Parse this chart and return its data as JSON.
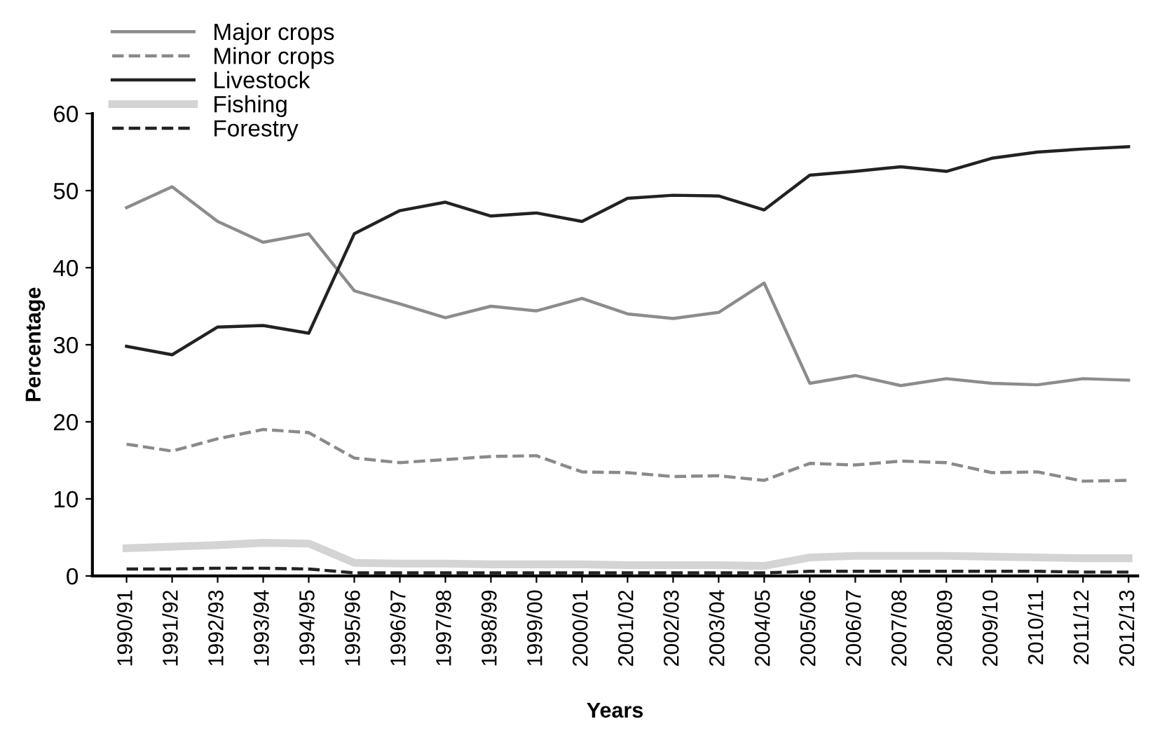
{
  "chart_data": {
    "type": "line",
    "xlabel": "Years",
    "ylabel": "Percentage",
    "categories": [
      "1990/91",
      "1991/92",
      "1992/93",
      "1993/94",
      "1994/95",
      "1995/96",
      "1996/97",
      "1997/98",
      "1998/99",
      "1999/00",
      "2000/01",
      "2001/02",
      "2002/03",
      "2003/04",
      "2004/05",
      "2005/06",
      "2006/07",
      "2007/08",
      "2008/09",
      "2009/10",
      "2010/11",
      "2011/12",
      "2012/13"
    ],
    "series": [
      {
        "name": "Major crops",
        "color": "#8c8c8c",
        "line_style": "solid",
        "values": [
          47.8,
          50.5,
          46,
          43.3,
          44.4,
          37,
          35.3,
          33.5,
          35,
          34.4,
          36,
          34,
          33.4,
          34.2,
          38,
          25,
          26,
          24.7,
          25.6,
          25,
          24.8,
          25.6,
          25.4
        ]
      },
      {
        "name": "Minor crops",
        "color": "#8a8a8a",
        "line_style": "dashed",
        "values": [
          17.1,
          16.2,
          17.8,
          19,
          18.6,
          15.3,
          14.7,
          15.1,
          15.5,
          15.6,
          13.5,
          13.4,
          12.9,
          13,
          12.4,
          14.6,
          14.4,
          14.9,
          14.7,
          13.4,
          13.5,
          12.3,
          12.4
        ]
      },
      {
        "name": "Livestock",
        "color": "#222222",
        "line_style": "solid",
        "values": [
          29.8,
          28.7,
          32.3,
          32.5,
          31.5,
          44.4,
          47.4,
          48.5,
          46.7,
          47.1,
          46,
          49,
          49.4,
          49.3,
          47.5,
          52,
          52.5,
          53.1,
          52.5,
          54.2,
          55,
          55.4,
          55.7
        ]
      },
      {
        "name": "Fishing",
        "color": "#d4d4d4",
        "line_style": "solid",
        "values": [
          3.6,
          3.8,
          4,
          4.3,
          4.2,
          1.7,
          1.6,
          1.6,
          1.5,
          1.5,
          1.5,
          1.4,
          1.4,
          1.4,
          1.3,
          2.4,
          2.6,
          2.6,
          2.6,
          2.5,
          2.4,
          2.3,
          2.3
        ]
      },
      {
        "name": "Forestry",
        "color": "#222222",
        "line_style": "dashed",
        "values": [
          0.9,
          0.9,
          1,
          1,
          0.9,
          0.4,
          0.4,
          0.4,
          0.4,
          0.4,
          0.4,
          0.4,
          0.4,
          0.4,
          0.4,
          0.6,
          0.6,
          0.6,
          0.6,
          0.6,
          0.6,
          0.5,
          0.5
        ]
      }
    ],
    "ylim": [
      0,
      60
    ],
    "yticks": [
      0,
      10,
      20,
      30,
      40,
      50,
      60
    ],
    "grid": false,
    "legend": "top left"
  }
}
